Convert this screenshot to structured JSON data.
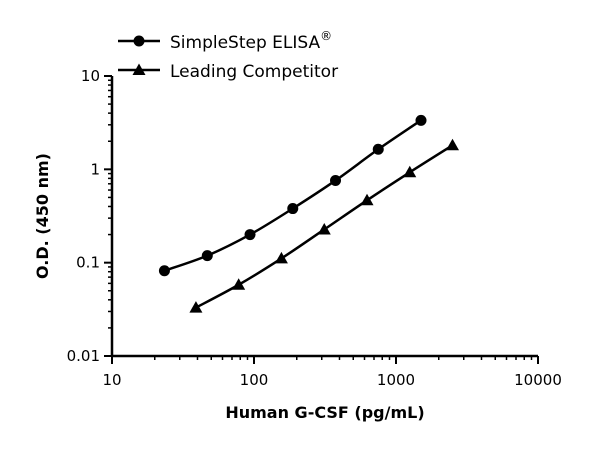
{
  "chart_data": {
    "type": "line",
    "title": "",
    "xlabel": "Human G-CSF (pg/mL)",
    "ylabel": "O.D. (450 nm)",
    "xscale": "log",
    "yscale": "log",
    "xlim": [
      10,
      10000
    ],
    "ylim": [
      0.01,
      10
    ],
    "xticks": [
      "10",
      "100",
      "1000",
      "10000"
    ],
    "yticks": [
      "0.01",
      "0.1",
      "1",
      "10"
    ],
    "grid": false,
    "legend_placement": "top-left",
    "series": [
      {
        "name": "SimpleStep ELISA",
        "name_suffix": "®",
        "marker": "circle",
        "color": "#000000",
        "x": [
          23.4,
          46.9,
          93.8,
          187.5,
          375,
          750,
          1500
        ],
        "y": [
          0.082,
          0.119,
          0.2,
          0.38,
          0.76,
          1.64,
          3.35
        ]
      },
      {
        "name": "Leading Competitor",
        "marker": "triangle",
        "color": "#000000",
        "x": [
          39,
          78,
          156,
          312.5,
          625,
          1250,
          2500
        ],
        "y": [
          0.033,
          0.058,
          0.111,
          0.227,
          0.466,
          0.93,
          1.81
        ]
      }
    ]
  }
}
